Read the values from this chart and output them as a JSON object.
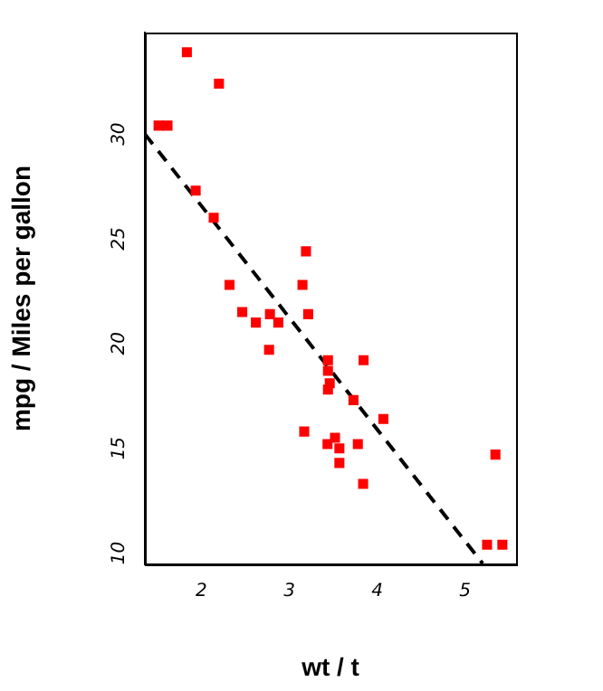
{
  "chart_data": {
    "type": "scatter",
    "xlabel": "wt / t",
    "ylabel": "mpg / Miles per gallon",
    "xlim": [
      1.357,
      5.58
    ],
    "ylim": [
      9.46,
      34.84
    ],
    "xticks": [
      2,
      3,
      4,
      5
    ],
    "yticks": [
      10,
      15,
      20,
      25,
      30
    ],
    "marker": "square",
    "series": [
      {
        "color": "#ff0000",
        "x": [
          2.62,
          2.875,
          2.32,
          3.215,
          3.44,
          3.46,
          3.57,
          3.19,
          3.15,
          3.44,
          3.44,
          4.07,
          3.73,
          3.78,
          5.25,
          5.424,
          5.345,
          2.2,
          1.615,
          1.835,
          2.465,
          3.52,
          3.435,
          3.84,
          3.845,
          1.935,
          2.14,
          1.513,
          3.17,
          2.77,
          3.57,
          2.78
        ],
        "values": [
          21.0,
          21.0,
          22.8,
          21.4,
          18.7,
          18.1,
          14.3,
          24.4,
          22.8,
          19.2,
          17.8,
          16.4,
          17.3,
          15.2,
          10.4,
          10.4,
          14.7,
          32.4,
          30.4,
          33.9,
          21.5,
          15.5,
          15.2,
          13.3,
          19.2,
          27.3,
          26.0,
          30.4,
          15.8,
          19.7,
          15.0,
          21.4
        ]
      },
      {
        "type": "line",
        "color": "#000000",
        "line_style": "dashed",
        "marker": "none",
        "x": [
          1.357,
          5.2
        ],
        "values": [
          30.0,
          9.5
        ]
      }
    ]
  }
}
